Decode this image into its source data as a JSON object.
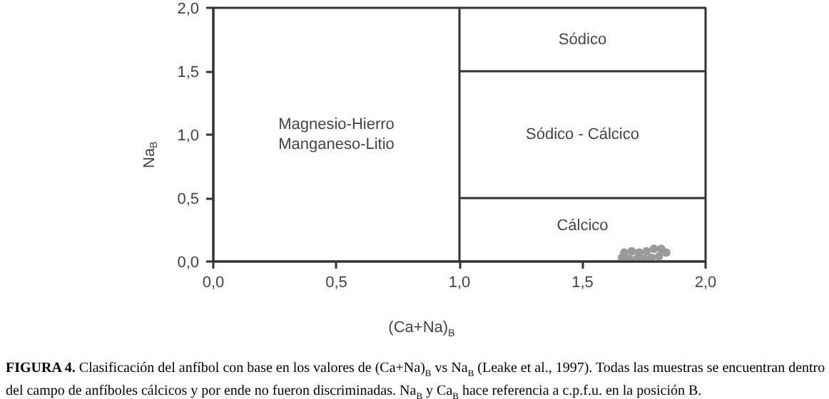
{
  "chart_data": {
    "type": "scatter",
    "xlabel": "(Ca+Na)$_{B}$",
    "ylabel": "Na$_{B}$",
    "xlim": [
      0,
      2
    ],
    "ylim": [
      0,
      2
    ],
    "xticks": [
      {
        "value": 0,
        "label": "0,0"
      },
      {
        "value": 0.5,
        "label": "0,5"
      },
      {
        "value": 1,
        "label": "1,0"
      },
      {
        "value": 1.5,
        "label": "1,5"
      },
      {
        "value": 2,
        "label": "2,0"
      }
    ],
    "yticks": [
      {
        "value": 0,
        "label": "0,0"
      },
      {
        "value": 0.5,
        "label": "0,5"
      },
      {
        "value": 1,
        "label": "1,0"
      },
      {
        "value": 1.5,
        "label": "1,5"
      },
      {
        "value": 2,
        "label": "2,0"
      }
    ],
    "grid": false,
    "series": [
      {
        "color": "#9a9a9a",
        "marker": "circle",
        "x": [
          1.66,
          1.69,
          1.72,
          1.75,
          1.78,
          1.81,
          1.84,
          1.67,
          1.7,
          1.73,
          1.76,
          1.79,
          1.82
        ],
        "values": [
          0.03,
          0.02,
          0.02,
          0.02,
          0.03,
          0.04,
          0.07,
          0.07,
          0.08,
          0.07,
          0.08,
          0.1,
          0.1
        ]
      },
      {
        "type": "line",
        "color": "#333333",
        "x": [
          1,
          1
        ],
        "values": [
          0,
          2
        ]
      },
      {
        "type": "line",
        "color": "#333333",
        "x": [
          1,
          2
        ],
        "values": [
          0.5,
          0.5
        ]
      },
      {
        "type": "line",
        "color": "#333333",
        "x": [
          1,
          2
        ],
        "values": [
          1.5,
          1.5
        ]
      }
    ],
    "annotations": [
      "Sódico",
      "Sódico - Cálcico",
      "Cálcico",
      "Magnesio-Hierro\nManganeso-Litio",
      "FIGURA 4. Clasificación del anfíbol con base en los valores de (Ca+Na)$_{B}$ vs Na$_{B}$ (Leake et al., 1997). Todas las muestras se encuentran dentro del campo de anfíboles cálcicos y por ende no fueron discriminadas. Na$_{B}$ y Ca$_{B}$ hace referencia a c.p.f.u. en la posición B."
    ]
  }
}
